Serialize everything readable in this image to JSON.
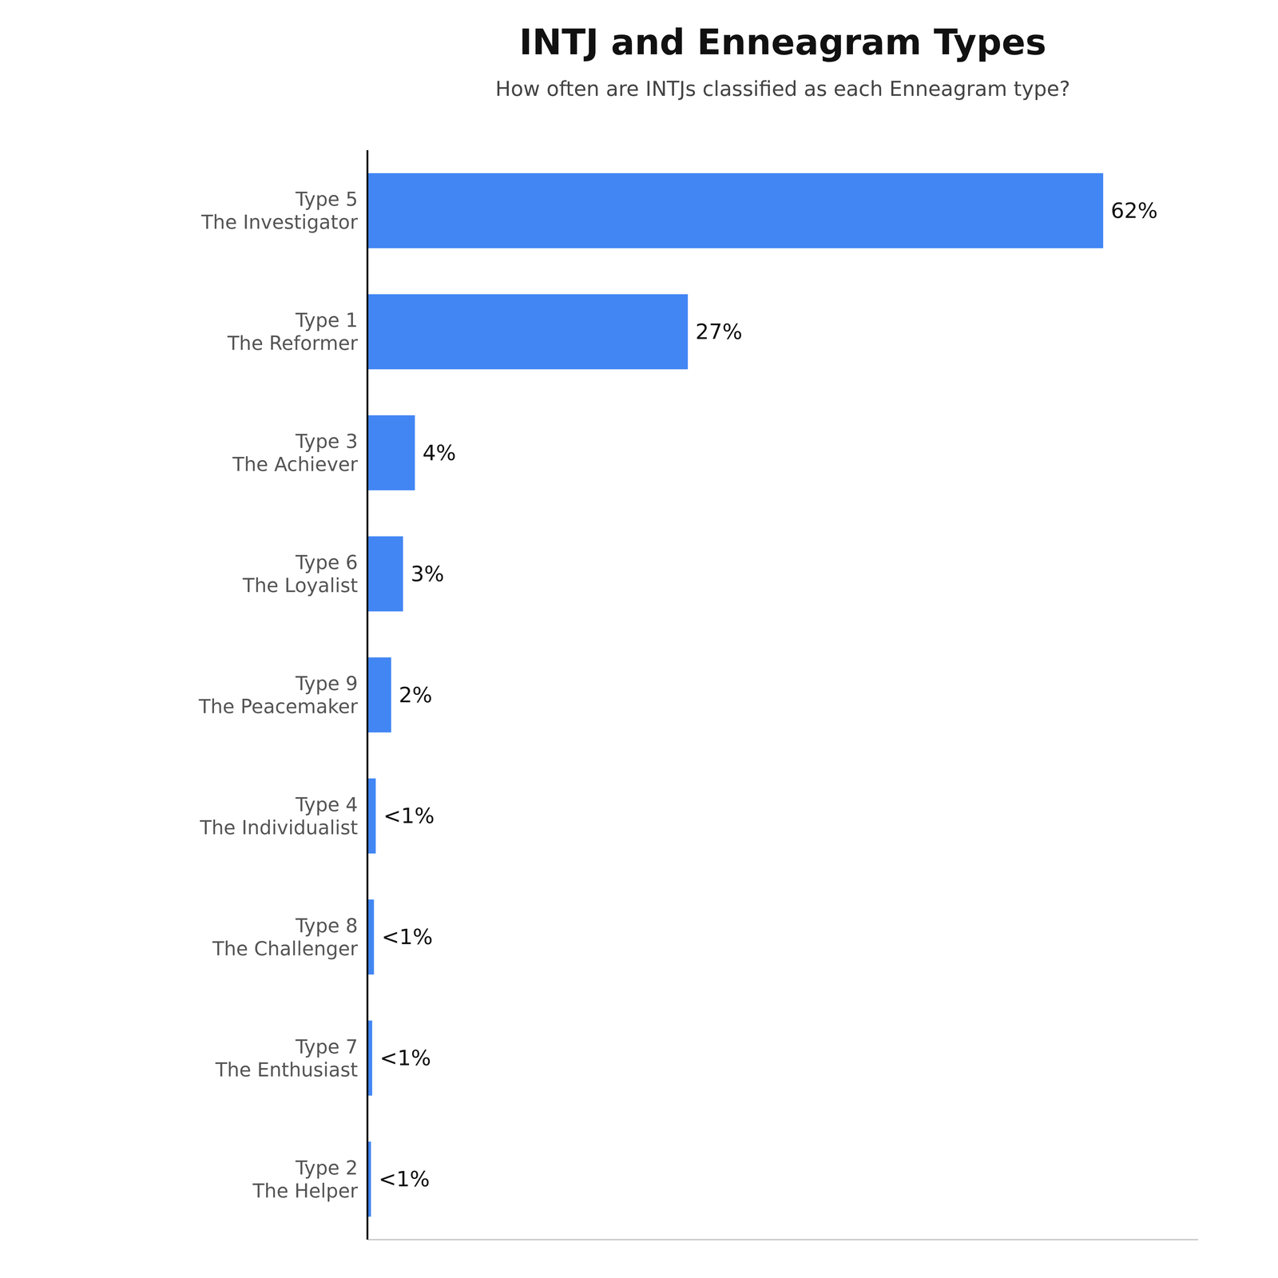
{
  "chart_data": {
    "type": "bar",
    "orientation": "horizontal",
    "title": "INTJ and Enneagram Types",
    "subtitle": "How often are INTJs classified as each Enneagram type?",
    "categories": [
      "Type 5\nThe Investigator",
      "Type 1\nThe Reformer",
      "Type 3\nThe Achiever",
      "Type 6\nThe Loyalist",
      "Type 9\nThe Peacemaker",
      "Type 4\nThe Individualist",
      "Type 8\nThe Challenger",
      "Type 7\nThe Enthusiast",
      "Type 2\nThe Helper"
    ],
    "values": [
      62,
      27,
      4,
      3,
      2,
      0.7,
      0.55,
      0.4,
      0.3
    ],
    "value_labels": [
      "62%",
      "27%",
      "4%",
      "3%",
      "2%",
      "<1%",
      "<1%",
      "<1%",
      "<1%"
    ],
    "data_labels": true,
    "color": "#4286f4",
    "xlim": [
      0,
      70
    ],
    "xticks": [],
    "grid": false,
    "tick_labels": "y"
  }
}
